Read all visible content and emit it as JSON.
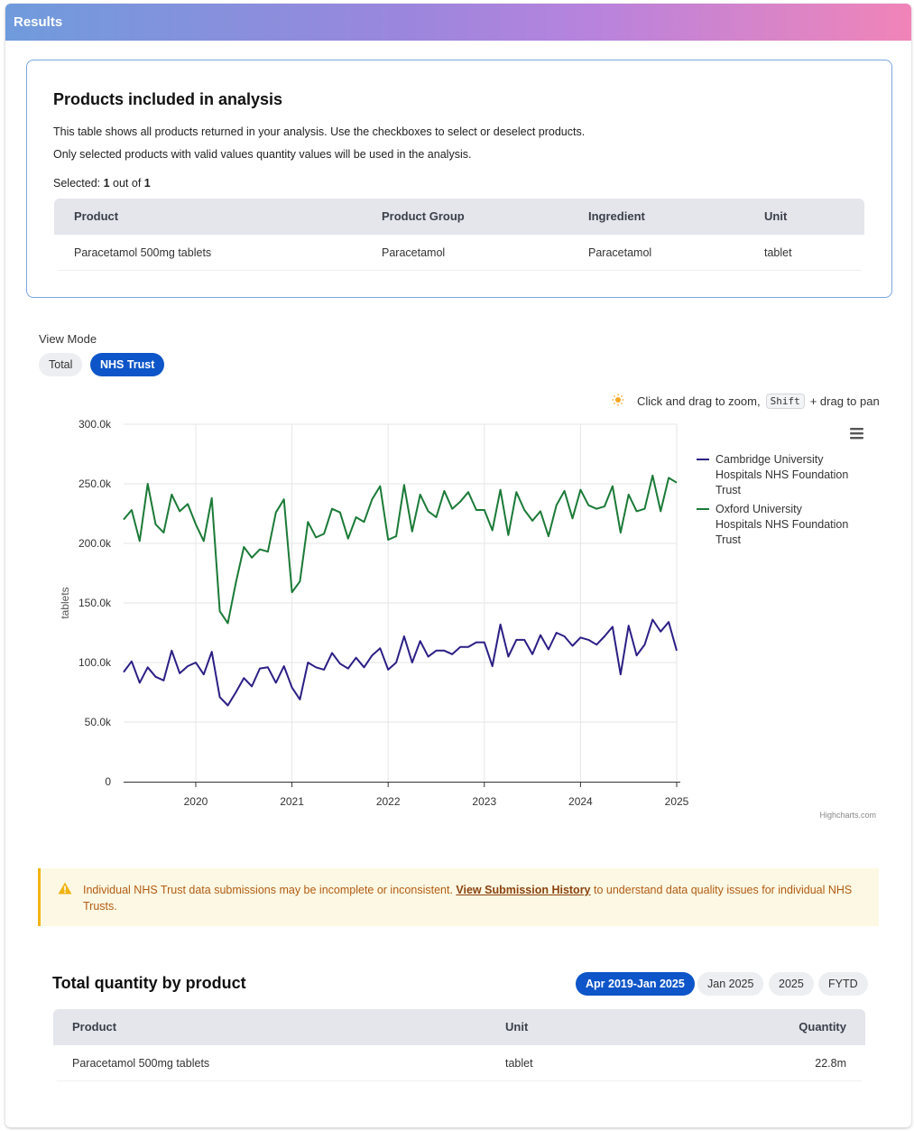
{
  "header": {
    "title": "Results"
  },
  "products_section": {
    "title": "Products included in analysis",
    "description_line1": "This table shows all products returned in your analysis. Use the checkboxes to select or deselect products.",
    "description_line2": "Only selected products with valid values quantity values will be used in the analysis.",
    "selected_prefix": "Selected: ",
    "selected_count": "1",
    "selected_middle": " out of ",
    "selected_total": "1",
    "columns": [
      "Product",
      "Product Group",
      "Ingredient",
      "Unit"
    ],
    "rows": [
      [
        "Paracetamol 500mg tablets",
        "Paracetamol",
        "Paracetamol",
        "tablet"
      ]
    ]
  },
  "view_mode": {
    "label": "View Mode",
    "options": [
      "Total",
      "NHS Trust"
    ],
    "selected": "NHS Trust"
  },
  "chart_hint": {
    "text_before": "Click and drag to zoom,",
    "key": "Shift",
    "text_after": "+ drag to pan"
  },
  "chart_data": {
    "type": "line",
    "ylabel": "tablets",
    "xlabel": "",
    "ylim": [
      0,
      300000
    ],
    "y_ticks": [
      "0",
      "50.0k",
      "100.0k",
      "150.0k",
      "200.0k",
      "250.0k",
      "300.0k"
    ],
    "x_tick_labels": [
      "2020",
      "2021",
      "2022",
      "2023",
      "2024",
      "2025"
    ],
    "x_start": "2019-04",
    "x_end": "2025-01",
    "credits": "Highcharts.com",
    "grid": true,
    "legend_position": "right",
    "series": [
      {
        "name": "Cambridge University Hospitals NHS Foundation Trust",
        "color": "#2b1f85",
        "values": [
          92000,
          101000,
          83000,
          96000,
          88000,
          85000,
          110000,
          91000,
          97000,
          100000,
          90000,
          109000,
          71000,
          64000,
          75000,
          87000,
          80000,
          95000,
          96000,
          83000,
          97000,
          79000,
          69000,
          100000,
          96000,
          94000,
          108000,
          99000,
          95000,
          104000,
          96000,
          106000,
          112000,
          94000,
          100000,
          122000,
          100000,
          118000,
          105000,
          110000,
          110000,
          107000,
          113000,
          113000,
          117000,
          117000,
          97000,
          132000,
          105000,
          119000,
          119000,
          107000,
          123000,
          111000,
          125000,
          122000,
          114000,
          121000,
          119000,
          115000,
          122000,
          130000,
          90000,
          131000,
          106000,
          115000,
          136000,
          126000,
          134000,
          110000
        ]
      },
      {
        "name": "Oxford University Hospitals NHS Foundation Trust",
        "color": "#1b7a37",
        "values": [
          220000,
          228000,
          202000,
          250000,
          216000,
          209000,
          241000,
          227000,
          233000,
          216000,
          202000,
          238000,
          143000,
          133000,
          167000,
          197000,
          188000,
          195000,
          193000,
          226000,
          237000,
          159000,
          168000,
          218000,
          205000,
          208000,
          229000,
          226000,
          204000,
          222000,
          218000,
          237000,
          248000,
          203000,
          206000,
          249000,
          210000,
          241000,
          227000,
          222000,
          244000,
          229000,
          235000,
          243000,
          228000,
          228000,
          211000,
          245000,
          207000,
          243000,
          228000,
          219000,
          227000,
          206000,
          232000,
          244000,
          221000,
          245000,
          232000,
          229000,
          231000,
          248000,
          209000,
          241000,
          227000,
          229000,
          257000,
          227000,
          255000,
          251000
        ]
      }
    ]
  },
  "alert": {
    "text_before": "Individual NHS Trust data submissions may be incomplete or inconsistent. ",
    "link_text": "View Submission History",
    "text_after": " to understand data quality issues for individual NHS Trusts."
  },
  "total_section": {
    "title": "Total quantity by product",
    "period_options": [
      "Apr 2019-Jan 2025",
      "Jan 2025",
      "2025",
      "FYTD"
    ],
    "selected_period": "Apr 2019-Jan 2025",
    "columns": [
      "Product",
      "Unit",
      "Quantity"
    ],
    "rows": [
      [
        "Paracetamol 500mg tablets",
        "tablet",
        "22.8m"
      ]
    ]
  },
  "colors": {
    "accent": "#0d55c8",
    "header_gradient": [
      "#6f9bdc",
      "#b883dd",
      "#f184b8"
    ],
    "warning_bg": "#fdf8e3",
    "warning_border": "#f2b312",
    "warning_text": "#b25c13"
  },
  "icons": {
    "hint_icon": "sun-icon",
    "menu_icon": "hamburger-menu-icon",
    "alert_icon": "warning-triangle-icon"
  }
}
